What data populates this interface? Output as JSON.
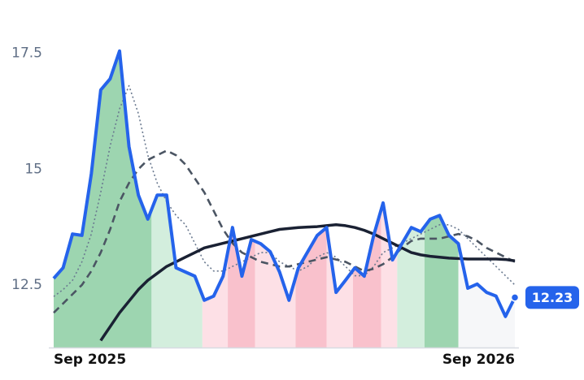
{
  "chart_data": {
    "type": "line",
    "xlim": [
      0,
      49
    ],
    "xticks": [
      {
        "value": 0,
        "label": "Sep 2025"
      },
      {
        "value": 49,
        "label": "Sep 2026"
      }
    ],
    "ylim": [
      11.15,
      18.3
    ],
    "yticks": [
      12.5,
      15.0,
      17.5
    ],
    "grid": false,
    "bands": [
      {
        "start": 0,
        "end": 10.4,
        "color": "#9dd5b0"
      },
      {
        "start": 10.4,
        "end": 15.8,
        "color": "#d3eedd"
      },
      {
        "start": 15.8,
        "end": 18.5,
        "color": "#fde0e6"
      },
      {
        "start": 18.5,
        "end": 21.4,
        "color": "#f9c1cc"
      },
      {
        "start": 21.4,
        "end": 25.7,
        "color": "#fde0e6"
      },
      {
        "start": 25.7,
        "end": 29.0,
        "color": "#f9c1cc"
      },
      {
        "start": 29.0,
        "end": 31.8,
        "color": "#fde0e6"
      },
      {
        "start": 31.8,
        "end": 34.8,
        "color": "#f9c1cc"
      },
      {
        "start": 34.8,
        "end": 36.5,
        "color": "#fde0e6"
      },
      {
        "start": 36.5,
        "end": 39.4,
        "color": "#d3eedd"
      },
      {
        "start": 39.4,
        "end": 43.0,
        "color": "#9dd5b0"
      },
      {
        "start": 43.0,
        "end": 49,
        "color": "#f6f7f9"
      }
    ],
    "series": [
      {
        "color": "#2563eb",
        "style": "thick",
        "values": [
          12.64,
          12.87,
          13.6,
          13.57,
          14.9,
          16.71,
          16.95,
          17.55,
          15.49,
          14.44,
          13.92,
          14.44,
          14.44,
          12.87,
          12.78,
          12.69,
          12.17,
          12.26,
          12.69,
          13.74,
          12.69,
          13.48,
          13.39,
          13.22,
          12.78,
          12.17,
          12.87,
          13.22,
          13.57,
          13.74,
          12.34,
          12.6,
          12.87,
          12.69,
          13.57,
          14.27,
          13.04,
          13.39,
          13.74,
          13.65,
          13.92,
          14.0,
          13.57,
          13.39,
          12.43,
          12.52,
          12.34,
          12.26,
          11.82,
          12.23
        ]
      },
      {
        "color": "#6b7a90",
        "style": "dotted",
        "values": [
          12.25,
          12.4,
          12.6,
          13.0,
          13.6,
          14.5,
          15.5,
          16.3,
          16.8,
          16.2,
          15.3,
          14.7,
          14.3,
          14.0,
          13.8,
          13.4,
          13.0,
          12.8,
          12.8,
          12.9,
          13.0,
          13.1,
          13.2,
          13.2,
          13.0,
          12.9,
          12.8,
          12.9,
          13.1,
          13.2,
          13.1,
          12.9,
          12.7,
          12.7,
          12.9,
          13.2,
          13.3,
          13.4,
          13.5,
          13.6,
          13.7,
          13.8,
          13.8,
          13.7,
          13.5,
          13.3,
          13.1,
          12.9,
          12.7,
          12.5
        ]
      },
      {
        "color": "#4b5563",
        "style": "dashed",
        "values": [
          11.9,
          12.1,
          12.3,
          12.5,
          12.8,
          13.2,
          13.7,
          14.3,
          14.7,
          15.0,
          15.2,
          15.3,
          15.4,
          15.3,
          15.1,
          14.8,
          14.5,
          14.1,
          13.7,
          13.4,
          13.2,
          13.1,
          13.0,
          12.95,
          12.9,
          12.9,
          12.95,
          13.0,
          13.05,
          13.1,
          13.05,
          13.0,
          12.9,
          12.8,
          12.85,
          12.95,
          13.1,
          13.3,
          13.45,
          13.5,
          13.5,
          13.5,
          13.55,
          13.6,
          13.55,
          13.45,
          13.3,
          13.2,
          13.1,
          13.0
        ]
      },
      {
        "color": "#1a2133",
        "style": "solid",
        "values": [
          null,
          null,
          null,
          null,
          null,
          11.3,
          11.6,
          11.9,
          12.15,
          12.4,
          12.6,
          12.75,
          12.9,
          13.0,
          13.1,
          13.2,
          13.3,
          13.35,
          13.4,
          13.45,
          13.5,
          13.55,
          13.6,
          13.65,
          13.7,
          13.72,
          13.74,
          13.75,
          13.76,
          13.78,
          13.8,
          13.78,
          13.74,
          13.68,
          13.6,
          13.5,
          13.4,
          13.3,
          13.2,
          13.15,
          13.12,
          13.1,
          13.08,
          13.07,
          13.06,
          13.06,
          13.06,
          13.06,
          13.05,
          13.02
        ]
      }
    ]
  }
}
